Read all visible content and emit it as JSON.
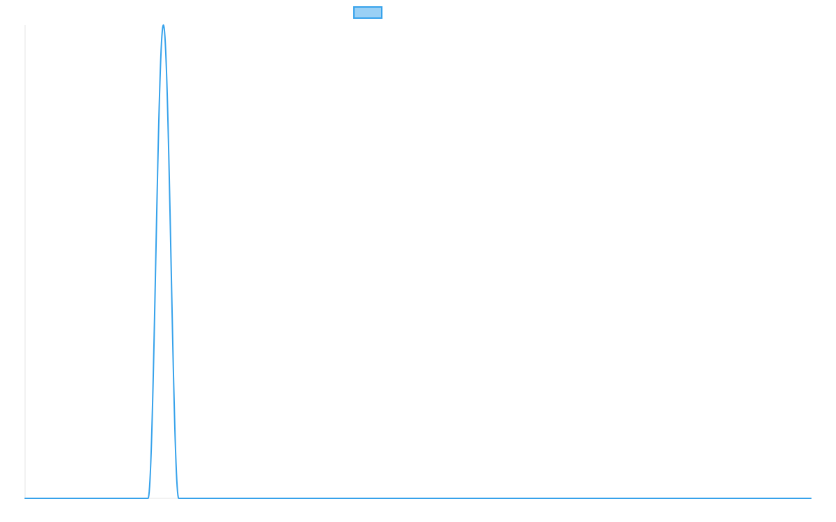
{
  "chart_data": {
    "type": "line",
    "title": "",
    "xlabel": "",
    "ylabel": "",
    "grid": false,
    "legend_position": "top-center",
    "x_range": [
      0,
      100
    ],
    "y_range": [
      0,
      1
    ],
    "series": [
      {
        "name": "",
        "color": "#36a2eb",
        "fill_color": "#9ad0f5",
        "peak_x": 17.6,
        "peak_y": 1,
        "support_start_x": 15.65,
        "support_end_x": 19.55,
        "baseline_y": 0
      }
    ]
  }
}
